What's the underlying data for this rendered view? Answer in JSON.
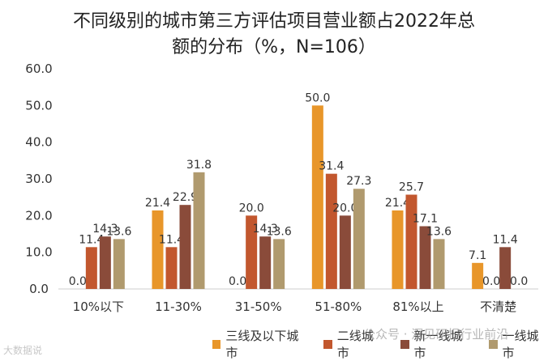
{
  "title_line1": "不同级别的城市第三方评估项目营业额占2022年总",
  "title_line2": "额的分布（%，N=106）",
  "chart_data": {
    "type": "bar",
    "title": "不同级别的城市第三方评估项目营业额占2022年总额的分布（%，N=106）",
    "categories": [
      "10%以下",
      "11-30%",
      "31-50%",
      "51-80%",
      "81%以上",
      "不清楚"
    ],
    "ylim": [
      0,
      60
    ],
    "ytick_step": 10,
    "ytick_labels": [
      "0.0",
      "10.0",
      "20.0",
      "30.0",
      "40.0",
      "50.0",
      "60.0"
    ],
    "grid": false,
    "series": [
      {
        "name": "三线及以下城市",
        "color": "#E8962A",
        "values": [
          0.0,
          21.4,
          0.0,
          50.0,
          21.4,
          7.1
        ],
        "labels": [
          "0.0",
          "21.4",
          "0.0",
          "50.0",
          "21.4",
          "7.1"
        ]
      },
      {
        "name": "二线城市",
        "color": "#C2572E",
        "values": [
          11.4,
          11.4,
          20.0,
          31.4,
          25.7,
          0.0
        ],
        "labels": [
          "11.4",
          "11.4",
          "20.0",
          "31.4",
          "25.7",
          "0.0"
        ]
      },
      {
        "name": "新一线城市",
        "color": "#8A4B3A",
        "values": [
          14.3,
          22.9,
          14.3,
          20.0,
          17.1,
          11.4
        ],
        "labels": [
          "14.3",
          "22.9",
          "14.3",
          "20.0",
          "17.1",
          "11.4"
        ]
      },
      {
        "name": "一线城市",
        "color": "#B09A6E",
        "values": [
          13.6,
          31.8,
          13.6,
          27.3,
          13.6,
          0.0
        ],
        "labels": [
          "13.6",
          "31.8",
          "13.6",
          "27.3",
          "13.6",
          "0.0"
        ]
      }
    ]
  },
  "watermarks": {
    "corner": "大数据说",
    "wechat": "公众号 · 洞见研报行业前沿"
  }
}
